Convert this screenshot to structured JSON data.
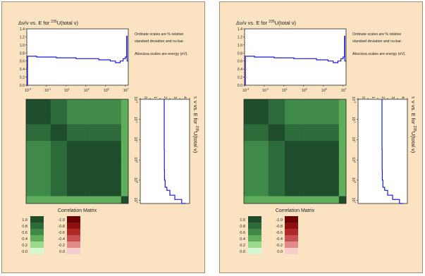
{
  "panels": [
    {
      "id": "left",
      "title_main": "Δν/ν vs. E for ",
      "title_sup": "235",
      "title_tail": "U(total ν)",
      "note1a": "Ordinate scales are % relative",
      "note1b": "standard deviation and nu-bar.",
      "note2": "Abscissa scales are energy (eV).",
      "vertical_title_main": "ν vs. E for ",
      "vertical_title_sup": "235",
      "vertical_title_tail": "U(total ν)",
      "matrix_label": "Correlation Matrix",
      "pos_scale": [
        "1.0",
        "0.8",
        "0.6",
        "0.4",
        "0.2",
        "0.0"
      ],
      "neg_scale": [
        "-1.0",
        "-0.8",
        "-0.6",
        "-0.4",
        "-0.2",
        "0.0"
      ]
    },
    {
      "id": "right",
      "title_main": "Δν/ν vs. E for ",
      "title_sup": "235",
      "title_tail": "U(total ν)",
      "note1a": "Ordinate scales are % relative",
      "note1b": "standard deviation and nu-bar.",
      "note2": "Abscissa scales are energy (eV).",
      "vertical_title_main": "ν vs. E for ",
      "vertical_title_sup": "235",
      "vertical_title_tail": "U(total ν)",
      "matrix_label": "Correlation Matrix",
      "pos_scale": [
        "1.0",
        "0.8",
        "0.6",
        "0.4",
        "0.2",
        "0.0"
      ],
      "neg_scale": [
        "-1.0",
        "-0.8",
        "-0.6",
        "-0.4",
        "-0.2",
        "0.0"
      ]
    }
  ],
  "colors": {
    "panel_bg": "#fbe3c1",
    "line": "#1a1ad6",
    "green_scale": [
      "#1e4d2b",
      "#2e6b3a",
      "#3f8a48",
      "#5fae5c",
      "#9ad98e",
      "#d6f7cf"
    ],
    "red_scale": [
      "#6b0000",
      "#8f1010",
      "#b02a2a",
      "#c85050",
      "#e08a8a",
      "#f6cccc"
    ]
  },
  "chart_data": [
    {
      "type": "line",
      "title": "Δν/ν vs. E for 235U(total ν)",
      "xscale": "log",
      "xlim": [
        0.001,
        20000000
      ],
      "ylim": [
        0,
        1.4
      ],
      "yticks": [
        "0.0",
        "0.2",
        "0.4",
        "0.6",
        "0.8",
        "1.0",
        "1.2",
        "1.4"
      ],
      "xticks": [
        "10",
        "10",
        "10",
        "10",
        "10",
        "10"
      ],
      "xtick_exps": [
        "-3",
        "-1",
        "1",
        "3",
        "5",
        "7"
      ],
      "x": [
        0.001,
        0.0012,
        0.0012,
        0.01,
        0.01,
        1,
        1,
        100,
        100,
        20000,
        20000,
        300000,
        300000,
        1000000,
        1000000,
        3000000,
        3000000,
        6000000,
        6000000,
        10000000,
        10000000,
        14000000,
        14000000,
        15000000,
        15000000,
        20000000
      ],
      "y": [
        0.0,
        0.0,
        0.72,
        0.72,
        0.7,
        0.7,
        0.68,
        0.68,
        0.66,
        0.66,
        0.63,
        0.63,
        0.6,
        0.6,
        0.56,
        0.56,
        0.6,
        0.6,
        0.66,
        0.66,
        0.7,
        0.7,
        1.22,
        1.22,
        0.6,
        0.6
      ]
    },
    {
      "type": "line",
      "title": "ν vs. E for 235U(total ν)",
      "orientation": "vertical",
      "yscale": "log",
      "ylim": [
        0.001,
        20000000
      ],
      "xlim": [
        0,
        5
      ],
      "xticks": [
        "0",
        "1",
        "2",
        "3",
        "4",
        "5"
      ],
      "yticks": [
        "10",
        "10",
        "10",
        "10",
        "10",
        "10"
      ],
      "ytick_exps": [
        "-3",
        "-1",
        "1",
        "3",
        "5",
        "7"
      ],
      "nu": [
        2.43,
        2.43,
        2.44,
        2.46,
        2.52,
        2.7,
        3.0,
        3.5,
        4.2,
        4.6
      ],
      "E": [
        0.001,
        1,
        100,
        10000,
        100000,
        500000,
        1000000,
        3000000,
        8000000,
        20000000
      ]
    },
    {
      "type": "heatmap",
      "title": "Correlation Matrix",
      "row_labels": [],
      "col_labels": [],
      "values": [
        [
          1.0,
          1.0,
          0.9,
          0.8,
          0.8,
          0.8,
          0.8,
          0.7
        ],
        [
          1.0,
          1.0,
          0.9,
          0.8,
          0.8,
          0.8,
          0.8,
          0.7
        ],
        [
          0.9,
          0.9,
          1.0,
          0.9,
          0.9,
          0.9,
          0.9,
          0.7
        ],
        [
          0.8,
          0.8,
          0.9,
          1.0,
          1.0,
          1.0,
          1.0,
          0.7
        ],
        [
          0.8,
          0.8,
          0.9,
          1.0,
          1.0,
          1.0,
          1.0,
          0.7
        ],
        [
          0.8,
          0.8,
          0.9,
          1.0,
          1.0,
          1.0,
          1.0,
          0.7
        ],
        [
          0.8,
          0.8,
          0.9,
          1.0,
          1.0,
          1.0,
          1.0,
          0.7
        ],
        [
          0.7,
          0.7,
          0.7,
          0.7,
          0.7,
          0.7,
          0.7,
          1.0
        ]
      ]
    }
  ]
}
